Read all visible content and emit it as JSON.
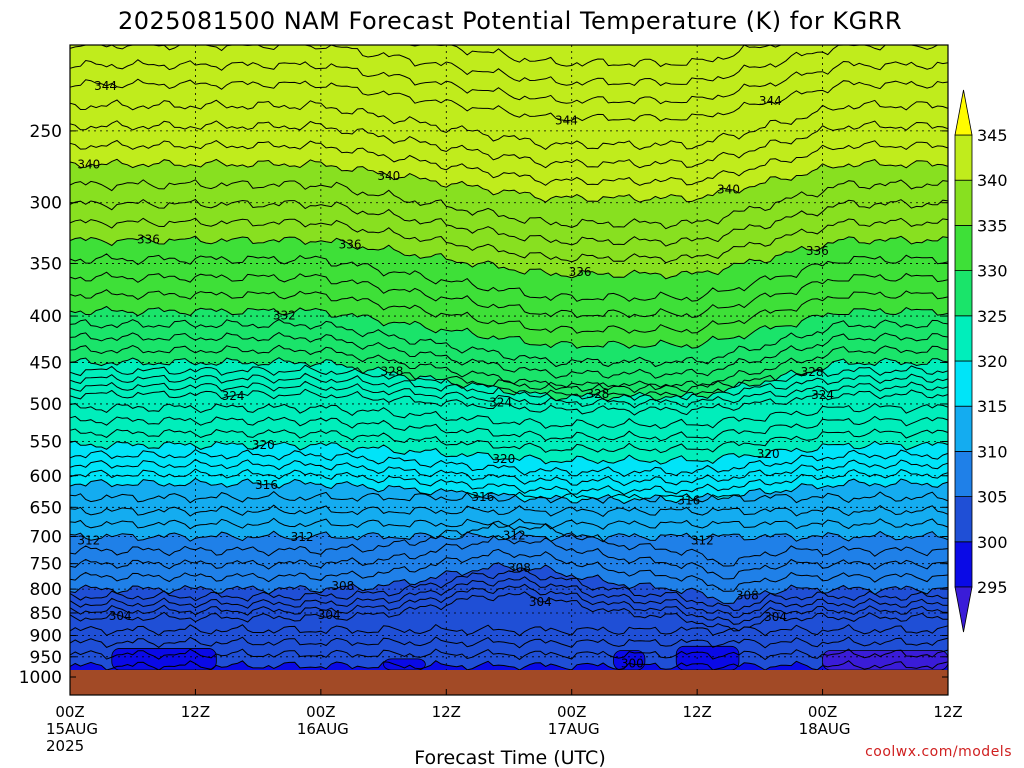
{
  "chart_data": {
    "type": "heatmap",
    "title": "2025081500 NAM Forecast Potential Temperature (K) for KGRR",
    "xlabel": "Forecast Time (UTC)",
    "ylabel": "",
    "credit": "coolwx.com/models",
    "y_scale": "log",
    "y_reversed": true,
    "ylim": [
      1000,
      200
    ],
    "y_ticks": [
      250,
      300,
      350,
      400,
      450,
      500,
      550,
      600,
      650,
      700,
      750,
      800,
      850,
      900,
      950,
      1000
    ],
    "x_ticks": [
      {
        "hour": 0,
        "lines": [
          "00Z",
          "15AUG",
          "2025"
        ]
      },
      {
        "hour": 12,
        "lines": [
          "12Z"
        ]
      },
      {
        "hour": 24,
        "lines": [
          "00Z",
          "16AUG"
        ]
      },
      {
        "hour": 36,
        "lines": [
          "12Z"
        ]
      },
      {
        "hour": 48,
        "lines": [
          "00Z",
          "17AUG"
        ]
      },
      {
        "hour": 60,
        "lines": [
          "12Z"
        ]
      },
      {
        "hour": 72,
        "lines": [
          "00Z",
          "18AUG"
        ]
      },
      {
        "hour": 84,
        "lines": [
          "12Z"
        ]
      }
    ],
    "grid": true,
    "colorbar": {
      "levels": [
        295,
        300,
        305,
        310,
        315,
        320,
        325,
        330,
        335,
        340,
        345
      ],
      "colors": [
        "#3a1cd8",
        "#0a0ae6",
        "#1f4fd6",
        "#1f80e8",
        "#14acf0",
        "#00e4f8",
        "#00eebb",
        "#1ae46a",
        "#3ee038",
        "#88e020",
        "#c0ec1c",
        "#fffc00"
      ],
      "extend": "both"
    },
    "contour_labels": [
      {
        "value": 344,
        "hour": 3.4
      },
      {
        "value": 344,
        "hour": 47.5
      },
      {
        "value": 344,
        "hour": 67
      },
      {
        "value": 340,
        "hour": 1.8
      },
      {
        "value": 340,
        "hour": 30.5
      },
      {
        "value": 340,
        "hour": 63
      },
      {
        "value": 336,
        "hour": 7.5
      },
      {
        "value": 336,
        "hour": 26.8
      },
      {
        "value": 336,
        "hour": 48.8
      },
      {
        "value": 336,
        "hour": 71.5
      },
      {
        "value": 332,
        "hour": 20.5
      },
      {
        "value": 328,
        "hour": 30.8
      },
      {
        "value": 328,
        "hour": 50.5
      },
      {
        "value": 328,
        "hour": 71
      },
      {
        "value": 324,
        "hour": 15.6
      },
      {
        "value": 324,
        "hour": 41.2
      },
      {
        "value": 324,
        "hour": 72
      },
      {
        "value": 320,
        "hour": 18.5
      },
      {
        "value": 320,
        "hour": 41.5
      },
      {
        "value": 320,
        "hour": 66.8
      },
      {
        "value": 316,
        "hour": 18.8
      },
      {
        "value": 316,
        "hour": 39.5
      },
      {
        "value": 316,
        "hour": 59.2
      },
      {
        "value": 312,
        "hour": 1.8
      },
      {
        "value": 312,
        "hour": 22.2
      },
      {
        "value": 312,
        "hour": 42.5
      },
      {
        "value": 312,
        "hour": 60.5
      },
      {
        "value": 308,
        "hour": 26.1
      },
      {
        "value": 308,
        "hour": 43
      },
      {
        "value": 308,
        "hour": 64.8
      },
      {
        "value": 304,
        "hour": 4.8
      },
      {
        "value": 304,
        "hour": 24.8
      },
      {
        "value": 304,
        "hour": 45
      },
      {
        "value": 304,
        "hour": 67.5
      },
      {
        "value": 300,
        "hour": 53.8
      }
    ]
  }
}
